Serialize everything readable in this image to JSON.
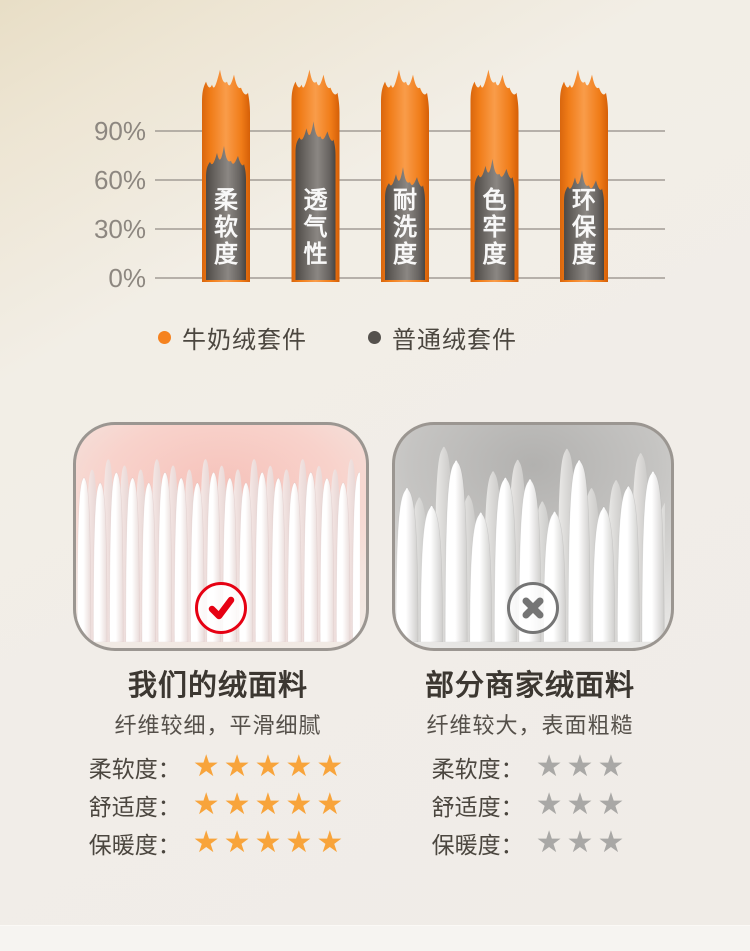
{
  "page": {
    "background_top": "#E8DEC6",
    "background_main": "#F1EDE8",
    "bottom_strip_color": "#F6F4F1"
  },
  "chart_data": {
    "type": "bar",
    "title": "",
    "bar_style": "flame",
    "categories": [
      "柔软度",
      "透气性",
      "耐洗度",
      "色牢度",
      "环保度"
    ],
    "series": [
      {
        "name": "牛奶绒套件",
        "color": "#F5821F",
        "values": [
          100,
          100,
          100,
          100,
          100
        ]
      },
      {
        "name": "普通绒套件",
        "color": "#6B6763",
        "values": [
          65,
          80,
          52,
          57,
          50
        ]
      }
    ],
    "y_ticks": [
      "0%",
      "30%",
      "60%",
      "90%"
    ],
    "ylim": [
      0,
      100
    ],
    "grid": true,
    "gridline_color": "#A29C95",
    "tick_color": "#8D8780",
    "legend_position": "bottom"
  },
  "comparison": {
    "left": {
      "title": "我们的绒面料",
      "subtitle": "纤维较细，平滑细腻",
      "verdict_icon": "check-icon",
      "accent": "#E60113",
      "star_color": "#F8A43B",
      "ratings": [
        {
          "label": "柔软度：",
          "stars": 5
        },
        {
          "label": "舒适度：",
          "stars": 5
        },
        {
          "label": "保暖度：",
          "stars": 5
        }
      ]
    },
    "right": {
      "title": "部分商家绒面料",
      "subtitle": "纤维较大，表面粗糙",
      "verdict_icon": "x-icon",
      "accent": "#757575",
      "star_color": "#A9A8A6",
      "ratings": [
        {
          "label": "柔软度：",
          "stars": 3
        },
        {
          "label": "舒适度：",
          "stars": 3
        },
        {
          "label": "保暖度：",
          "stars": 3
        }
      ]
    }
  }
}
